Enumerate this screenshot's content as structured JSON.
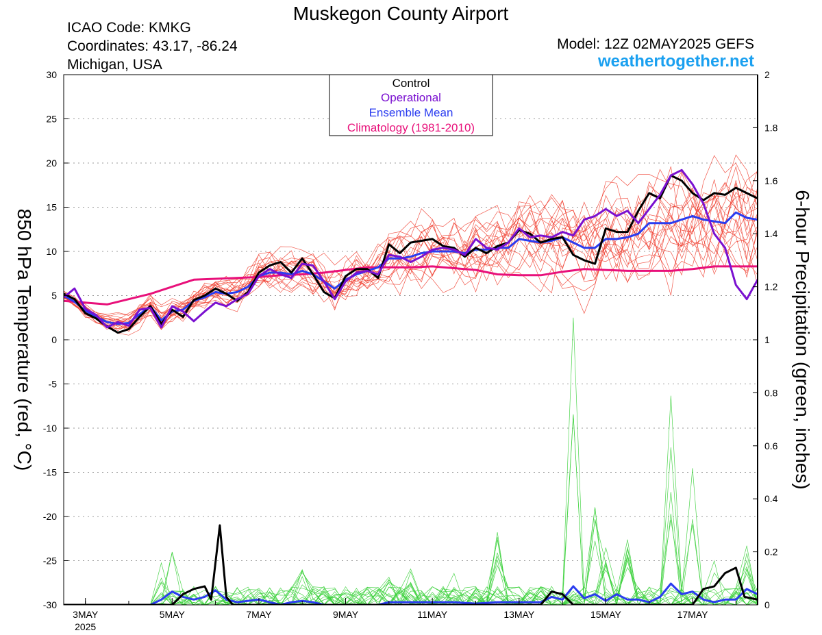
{
  "header": {
    "title": "Muskegon County Airport",
    "icao": "ICAO Code: KMKG",
    "coords": "Coordinates: 43.17, -86.24",
    "location": "Michigan, USA",
    "model": "Model: 12Z 02MAY2025 GEFS",
    "site": "weathertogether.net"
  },
  "colors": {
    "control": "#000000",
    "operational": "#7a10d0",
    "ensemble_mean": "#2a3cf0",
    "climatology": "#e8107a",
    "members_temp": "#f03a2a",
    "members_precip": "#3ad03a",
    "site": "#1aa0f0"
  },
  "chart_data": {
    "type": "line",
    "ylabel_left": "850 hPa Temperature (red, °C)",
    "ylabel_right": "6-hour Precipitation (green, inches)",
    "y_left_range": [
      -30,
      30
    ],
    "y_left_ticks": [
      "30",
      "25",
      "20",
      "15",
      "10",
      "5",
      "0",
      "-5",
      "-10",
      "-15",
      "-20",
      "-25",
      "-30"
    ],
    "y_right_range": [
      0,
      2
    ],
    "y_right_ticks": [
      "2",
      "1.8",
      "1.6",
      "1.4",
      "1.2",
      "1",
      "0.8",
      "0.6",
      "0.4",
      "0.2",
      "0"
    ],
    "x_range_days": [
      2.5,
      18.5
    ],
    "x_ticks": [
      {
        "day": 3,
        "label": "3MAY",
        "sub": "2025"
      },
      {
        "day": 5,
        "label": "5MAY",
        "sub": ""
      },
      {
        "day": 7,
        "label": "7MAY",
        "sub": ""
      },
      {
        "day": 9,
        "label": "9MAY",
        "sub": ""
      },
      {
        "day": 11,
        "label": "11MAY",
        "sub": ""
      },
      {
        "day": 13,
        "label": "13MAY",
        "sub": ""
      },
      {
        "day": 15,
        "label": "15MAY",
        "sub": ""
      },
      {
        "day": 17,
        "label": "17MAY",
        "sub": ""
      }
    ],
    "grid": "horizontal-dotted",
    "legend": {
      "placement": "top-center",
      "items": [
        {
          "key": "control",
          "label": "Control"
        },
        {
          "key": "operational",
          "label": "Operational"
        },
        {
          "key": "ensemble_mean",
          "label": "Ensemble Mean"
        },
        {
          "key": "climatology",
          "label": "Climatology (1981-2010)"
        }
      ]
    },
    "series": {
      "control_temp": [
        [
          2.5,
          5.2
        ],
        [
          2.75,
          4.6
        ],
        [
          3,
          3
        ],
        [
          3.25,
          2.4
        ],
        [
          3.5,
          1.5
        ],
        [
          3.75,
          0.8
        ],
        [
          4,
          1.2
        ],
        [
          4.25,
          2.6
        ],
        [
          4.5,
          3.8
        ],
        [
          4.75,
          1.8
        ],
        [
          5,
          3.4
        ],
        [
          5.25,
          2.6
        ],
        [
          5.5,
          4.5
        ],
        [
          5.75,
          5
        ],
        [
          6,
          5.8
        ],
        [
          6.25,
          5.2
        ],
        [
          6.5,
          4.4
        ],
        [
          6.75,
          5.4
        ],
        [
          7,
          7.6
        ],
        [
          7.25,
          8.4
        ],
        [
          7.5,
          8.8
        ],
        [
          7.75,
          7.6
        ],
        [
          8,
          9.2
        ],
        [
          8.25,
          7.4
        ],
        [
          8.5,
          5.4
        ],
        [
          8.75,
          4.7
        ],
        [
          9,
          7.2
        ],
        [
          9.25,
          8
        ],
        [
          9.5,
          8
        ],
        [
          9.75,
          7
        ],
        [
          10,
          10.8
        ],
        [
          10.25,
          9.8
        ],
        [
          10.5,
          11
        ],
        [
          10.75,
          11.2
        ],
        [
          11,
          11.4
        ],
        [
          11.25,
          10.6
        ],
        [
          11.5,
          10.4
        ],
        [
          11.75,
          9.4
        ],
        [
          12,
          10.4
        ],
        [
          12.25,
          9.8
        ],
        [
          12.5,
          10.6
        ],
        [
          12.75,
          11
        ],
        [
          13,
          12.4
        ],
        [
          13.25,
          12
        ],
        [
          13.5,
          11
        ],
        [
          13.75,
          11.4
        ],
        [
          14,
          11.6
        ],
        [
          14.25,
          9.6
        ],
        [
          14.5,
          9
        ],
        [
          14.75,
          8.6
        ],
        [
          15,
          12.6
        ],
        [
          15.25,
          12.2
        ],
        [
          15.5,
          12.2
        ],
        [
          15.75,
          14.6
        ],
        [
          16,
          16.6
        ],
        [
          16.25,
          16
        ],
        [
          16.5,
          18.6
        ],
        [
          16.75,
          18
        ],
        [
          17,
          16.6
        ],
        [
          17.25,
          15.8
        ],
        [
          17.5,
          16.6
        ],
        [
          17.75,
          16.4
        ],
        [
          18,
          17.2
        ],
        [
          18.25,
          16.6
        ],
        [
          18.5,
          16
        ]
      ],
      "operational_temp": [
        [
          2.5,
          4.8
        ],
        [
          2.75,
          5.8
        ],
        [
          3,
          3.5
        ],
        [
          3.25,
          2.8
        ],
        [
          3.5,
          1.4
        ],
        [
          3.75,
          2
        ],
        [
          4,
          1.6
        ],
        [
          4.25,
          3.4
        ],
        [
          4.5,
          3.6
        ],
        [
          4.75,
          1.4
        ],
        [
          5,
          3.8
        ],
        [
          5.25,
          3.2
        ],
        [
          5.5,
          2.1
        ],
        [
          5.75,
          3.2
        ],
        [
          6,
          4.2
        ],
        [
          6.25,
          3.8
        ],
        [
          6.5,
          4.6
        ],
        [
          6.75,
          5.2
        ],
        [
          7,
          7.2
        ],
        [
          7.25,
          8
        ],
        [
          7.5,
          7.4
        ],
        [
          7.75,
          7
        ],
        [
          8,
          8.6
        ],
        [
          8.25,
          8.4
        ],
        [
          8.5,
          6.6
        ],
        [
          8.75,
          4.6
        ],
        [
          9,
          6.6
        ],
        [
          9.25,
          7.6
        ],
        [
          9.5,
          7.8
        ],
        [
          9.75,
          7.4
        ],
        [
          10,
          9.6
        ],
        [
          10.25,
          9.4
        ],
        [
          10.5,
          8.8
        ],
        [
          10.75,
          9.4
        ],
        [
          11,
          10.2
        ],
        [
          11.25,
          10.4
        ],
        [
          11.5,
          10.2
        ],
        [
          11.75,
          9.6
        ],
        [
          12,
          11.4
        ],
        [
          12.25,
          10.4
        ],
        [
          12.5,
          10.2
        ],
        [
          12.75,
          11
        ],
        [
          13,
          12.6
        ],
        [
          13.25,
          11.6
        ],
        [
          13.5,
          11.8
        ],
        [
          13.75,
          11.6
        ],
        [
          14,
          12.2
        ],
        [
          14.25,
          11.8
        ],
        [
          14.5,
          13.6
        ],
        [
          14.75,
          14
        ],
        [
          15,
          14.8
        ],
        [
          15.25,
          14
        ],
        [
          15.5,
          14.6
        ],
        [
          15.75,
          13.2
        ],
        [
          16,
          14.8
        ],
        [
          16.25,
          16.4
        ],
        [
          16.5,
          18.6
        ],
        [
          16.75,
          19.2
        ],
        [
          17,
          17.6
        ],
        [
          17.25,
          15.4
        ],
        [
          17.5,
          12
        ],
        [
          17.75,
          10.4
        ],
        [
          18,
          6.2
        ],
        [
          18.25,
          4.6
        ],
        [
          18.5,
          6.8
        ]
      ],
      "ensemble_mean_temp": [
        [
          2.5,
          5
        ],
        [
          2.75,
          4.3
        ],
        [
          3,
          3.3
        ],
        [
          3.25,
          2.6
        ],
        [
          3.5,
          2
        ],
        [
          3.75,
          1.8
        ],
        [
          4,
          1.9
        ],
        [
          4.25,
          2.9
        ],
        [
          4.5,
          3.8
        ],
        [
          4.75,
          2.2
        ],
        [
          5,
          3.2
        ],
        [
          5.25,
          3.4
        ],
        [
          5.5,
          4.4
        ],
        [
          5.75,
          4.8
        ],
        [
          6,
          5.4
        ],
        [
          6.25,
          5.2
        ],
        [
          6.5,
          5.4
        ],
        [
          6.75,
          6
        ],
        [
          7,
          7.2
        ],
        [
          7.25,
          7.6
        ],
        [
          7.5,
          7.6
        ],
        [
          7.75,
          7.4
        ],
        [
          8,
          7.8
        ],
        [
          8.25,
          7.4
        ],
        [
          8.5,
          6.6
        ],
        [
          8.75,
          5.8
        ],
        [
          9,
          6.8
        ],
        [
          9.25,
          7.4
        ],
        [
          9.5,
          7.8
        ],
        [
          9.75,
          8.2
        ],
        [
          10,
          9.2
        ],
        [
          10.25,
          9.2
        ],
        [
          10.5,
          9.4
        ],
        [
          10.75,
          9.8
        ],
        [
          11,
          10
        ],
        [
          11.25,
          10
        ],
        [
          11.5,
          10
        ],
        [
          11.75,
          9.8
        ],
        [
          12,
          10.2
        ],
        [
          12.25,
          10.2
        ],
        [
          12.5,
          10.4
        ],
        [
          12.75,
          10.4
        ],
        [
          13,
          11.4
        ],
        [
          13.25,
          11.2
        ],
        [
          13.5,
          11
        ],
        [
          13.75,
          11.2
        ],
        [
          14,
          11.6
        ],
        [
          14.25,
          11
        ],
        [
          14.5,
          10.4
        ],
        [
          14.75,
          10.4
        ],
        [
          15,
          11.4
        ],
        [
          15.25,
          11.4
        ],
        [
          15.5,
          11.6
        ],
        [
          15.75,
          12
        ],
        [
          16,
          13.2
        ],
        [
          16.25,
          13.2
        ],
        [
          16.5,
          13.2
        ],
        [
          16.75,
          13.6
        ],
        [
          17,
          14
        ],
        [
          17.25,
          13.6
        ],
        [
          17.5,
          13.4
        ],
        [
          17.75,
          13.2
        ],
        [
          18,
          14.4
        ],
        [
          18.25,
          13.8
        ],
        [
          18.5,
          13.6
        ]
      ],
      "climatology_temp": [
        [
          2.5,
          4.4
        ],
        [
          3,
          4.2
        ],
        [
          3.5,
          4
        ],
        [
          4,
          4.6
        ],
        [
          4.5,
          5.2
        ],
        [
          5,
          6
        ],
        [
          5.5,
          6.8
        ],
        [
          6,
          6.9
        ],
        [
          6.5,
          7
        ],
        [
          7,
          7.1
        ],
        [
          7.5,
          7.3
        ],
        [
          8,
          7.4
        ],
        [
          8.5,
          7.6
        ],
        [
          9,
          7.9
        ],
        [
          9.5,
          8.2
        ],
        [
          10,
          8.2
        ],
        [
          10.5,
          8.2
        ],
        [
          11,
          8.3
        ],
        [
          11.5,
          8.1
        ],
        [
          12,
          7.9
        ],
        [
          12.5,
          7.4
        ],
        [
          13,
          7.3
        ],
        [
          13.5,
          7.3
        ],
        [
          14,
          7.7
        ],
        [
          14.5,
          8
        ],
        [
          15,
          7.9
        ],
        [
          15.5,
          7.8
        ],
        [
          16,
          7.8
        ],
        [
          16.5,
          7.8
        ],
        [
          17,
          8
        ],
        [
          17.5,
          8.3
        ],
        [
          18,
          8.3
        ],
        [
          18.5,
          8.3
        ]
      ],
      "control_precip": [
        [
          2.5,
          0
        ],
        [
          5,
          0
        ],
        [
          5.25,
          0.04
        ],
        [
          5.5,
          0.06
        ],
        [
          5.75,
          0.07
        ],
        [
          5.9,
          0.02
        ],
        [
          6.1,
          0.3
        ],
        [
          6.25,
          0.03
        ],
        [
          6.4,
          0
        ],
        [
          13.5,
          0
        ],
        [
          13.75,
          0.05
        ],
        [
          14,
          0.04
        ],
        [
          14.25,
          0
        ],
        [
          17,
          0
        ],
        [
          17.25,
          0.06
        ],
        [
          17.5,
          0.07
        ],
        [
          17.75,
          0.12
        ],
        [
          18,
          0.14
        ],
        [
          18.2,
          0.03
        ],
        [
          18.5,
          0.02
        ]
      ],
      "ensemble_mean_precip": [
        [
          2.5,
          0
        ],
        [
          4.5,
          0
        ],
        [
          4.75,
          0.02
        ],
        [
          5,
          0.05
        ],
        [
          5.25,
          0.03
        ],
        [
          5.5,
          0.02
        ],
        [
          5.75,
          0.03
        ],
        [
          6,
          0.055
        ],
        [
          6.25,
          0.02
        ],
        [
          6.5,
          0.01
        ],
        [
          7,
          0.02
        ],
        [
          7.25,
          0.01
        ],
        [
          7.5,
          0
        ],
        [
          7.75,
          0.01
        ],
        [
          8,
          0.015
        ],
        [
          8.25,
          0.01
        ],
        [
          8.5,
          0
        ],
        [
          9.75,
          0
        ],
        [
          10,
          0.01
        ],
        [
          11,
          0.01
        ],
        [
          11.5,
          0.01
        ],
        [
          12,
          0.005
        ],
        [
          12.5,
          0.01
        ],
        [
          13,
          0.01
        ],
        [
          13.5,
          0.01
        ],
        [
          13.75,
          0.03
        ],
        [
          14,
          0.02
        ],
        [
          14.25,
          0.07
        ],
        [
          14.5,
          0.025
        ],
        [
          14.75,
          0.04
        ],
        [
          15,
          0.015
        ],
        [
          15.25,
          0.04
        ],
        [
          15.5,
          0.02
        ],
        [
          15.75,
          0.02
        ],
        [
          16,
          0.01
        ],
        [
          16.25,
          0.03
        ],
        [
          16.5,
          0.08
        ],
        [
          16.75,
          0.04
        ],
        [
          17,
          0.05
        ],
        [
          17.25,
          0.02
        ],
        [
          17.5,
          0.01
        ],
        [
          17.75,
          0.02
        ],
        [
          18,
          0.02
        ],
        [
          18.25,
          0.06
        ],
        [
          18.5,
          0.04
        ]
      ]
    }
  }
}
